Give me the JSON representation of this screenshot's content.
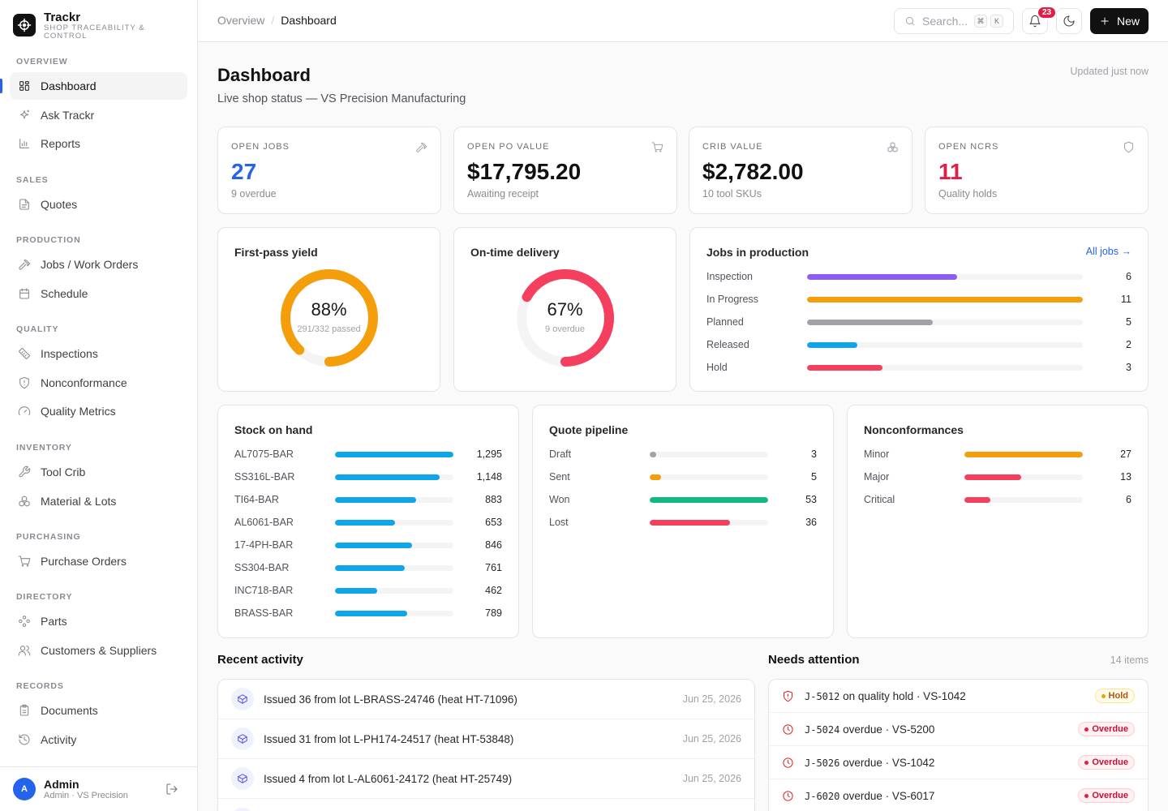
{
  "brand": {
    "name": "Trackr",
    "tagline": "SHOP TRACEABILITY & CONTROL"
  },
  "sidebar": {
    "sections": [
      {
        "title": "OVERVIEW",
        "items": [
          {
            "label": "Dashboard",
            "icon": "grid-icon",
            "active": true
          },
          {
            "label": "Ask Trackr",
            "icon": "sparkle-icon"
          },
          {
            "label": "Reports",
            "icon": "bar-chart-icon"
          }
        ]
      },
      {
        "title": "SALES",
        "items": [
          {
            "label": "Quotes",
            "icon": "file-icon"
          }
        ]
      },
      {
        "title": "PRODUCTION",
        "items": [
          {
            "label": "Jobs / Work Orders",
            "icon": "hammer-icon"
          },
          {
            "label": "Schedule",
            "icon": "calendar-icon"
          }
        ]
      },
      {
        "title": "QUALITY",
        "items": [
          {
            "label": "Inspections",
            "icon": "ruler-icon"
          },
          {
            "label": "Nonconformance",
            "icon": "shield-alert-icon"
          },
          {
            "label": "Quality Metrics",
            "icon": "gauge-icon"
          }
        ]
      },
      {
        "title": "INVENTORY",
        "items": [
          {
            "label": "Tool Crib",
            "icon": "wrench-icon"
          },
          {
            "label": "Material & Lots",
            "icon": "boxes-icon"
          }
        ]
      },
      {
        "title": "PURCHASING",
        "items": [
          {
            "label": "Purchase Orders",
            "icon": "cart-icon"
          }
        ]
      },
      {
        "title": "DIRECTORY",
        "items": [
          {
            "label": "Parts",
            "icon": "parts-icon"
          },
          {
            "label": "Customers & Suppliers",
            "icon": "users-icon"
          }
        ]
      },
      {
        "title": "RECORDS",
        "items": [
          {
            "label": "Documents",
            "icon": "document-icon"
          },
          {
            "label": "Activity",
            "icon": "history-icon"
          }
        ]
      }
    ],
    "user": {
      "initial": "A",
      "name": "Admin",
      "role": "Admin · VS Precision"
    }
  },
  "header": {
    "breadcrumb": [
      "Overview",
      "Dashboard"
    ],
    "search_placeholder": "Search...",
    "kbd": [
      "⌘",
      "K"
    ],
    "notifications": "23",
    "new_label": "New"
  },
  "page": {
    "title": "Dashboard",
    "subtitle": "Live shop status — VS Precision Manufacturing",
    "updated": "Updated just now"
  },
  "kpis": [
    {
      "label": "OPEN JOBS",
      "value": "27",
      "sub": "9 overdue",
      "color": "#2563eb",
      "icon": "hammer-icon"
    },
    {
      "label": "OPEN PO VALUE",
      "value": "$17,795.20",
      "sub": "Awaiting receipt",
      "color": "#111111",
      "icon": "cart-icon"
    },
    {
      "label": "CRIB VALUE",
      "value": "$2,782.00",
      "sub": "10 tool SKUs",
      "color": "#111111",
      "icon": "boxes-icon"
    },
    {
      "label": "OPEN NCRS",
      "value": "11",
      "sub": "Quality holds",
      "color": "#e11d48",
      "icon": "shield-icon"
    }
  ],
  "donuts": [
    {
      "title": "First-pass yield",
      "pct": "88%",
      "sub": "291/332 passed",
      "value": 0.88,
      "color": "#f59e0b"
    },
    {
      "title": "On-time delivery",
      "pct": "67%",
      "sub": "9 overdue",
      "value": 0.67,
      "color": "#f43f5e"
    }
  ],
  "jobs": {
    "title": "Jobs in production",
    "link": "All jobs →",
    "max": 11,
    "rows": [
      {
        "label": "Inspection",
        "value": 6,
        "color": "#8b5cf6"
      },
      {
        "label": "In Progress",
        "value": 11,
        "color": "#f59e0b"
      },
      {
        "label": "Planned",
        "value": 5,
        "color": "#a1a1aa"
      },
      {
        "label": "Released",
        "value": 2,
        "color": "#0ea5e9"
      },
      {
        "label": "Hold",
        "value": 3,
        "color": "#f43f5e"
      }
    ]
  },
  "stock": {
    "title": "Stock on hand",
    "max": 1295,
    "rows": [
      {
        "label": "AL7075-BAR",
        "value": 1295,
        "display": "1,295"
      },
      {
        "label": "SS316L-BAR",
        "value": 1148,
        "display": "1,148"
      },
      {
        "label": "TI64-BAR",
        "value": 883,
        "display": "883"
      },
      {
        "label": "AL6061-BAR",
        "value": 653,
        "display": "653"
      },
      {
        "label": "17-4PH-BAR",
        "value": 846,
        "display": "846"
      },
      {
        "label": "SS304-BAR",
        "value": 761,
        "display": "761"
      },
      {
        "label": "INC718-BAR",
        "value": 462,
        "display": "462"
      },
      {
        "label": "BRASS-BAR",
        "value": 789,
        "display": "789"
      }
    ]
  },
  "quotes": {
    "title": "Quote pipeline",
    "max": 53,
    "rows": [
      {
        "label": "Draft",
        "value": 3,
        "color": "#a1a1aa"
      },
      {
        "label": "Sent",
        "value": 5,
        "color": "#f59e0b"
      },
      {
        "label": "Won",
        "value": 53,
        "color": "#10b981"
      },
      {
        "label": "Lost",
        "value": 36,
        "color": "#f43f5e"
      }
    ]
  },
  "ncr": {
    "title": "Nonconformances",
    "max": 27,
    "rows": [
      {
        "label": "Minor",
        "value": 27,
        "color": "#f59e0b"
      },
      {
        "label": "Major",
        "value": 13,
        "color": "#f43f5e"
      },
      {
        "label": "Critical",
        "value": 6,
        "color": "#f43f5e"
      }
    ]
  },
  "activity": {
    "title": "Recent activity",
    "items": [
      {
        "text": "Issued 36 from lot L-BRASS-24746 (heat HT-71096)",
        "date": "Jun 25, 2026"
      },
      {
        "text": "Issued 31 from lot L-PH174-24517 (heat HT-53848)",
        "date": "Jun 25, 2026"
      },
      {
        "text": "Issued 4 from lot L-AL6061-24172 (heat HT-25749)",
        "date": "Jun 25, 2026"
      }
    ]
  },
  "attention": {
    "title": "Needs attention",
    "count": "14 items",
    "items": [
      {
        "job": "J-5012",
        "text": "on quality hold · VS-1042",
        "badge": "Hold",
        "kind": "hold",
        "icon": "shield-alert-icon"
      },
      {
        "job": "J-5024",
        "text": "overdue · VS-5200",
        "badge": "Overdue",
        "kind": "overdue",
        "icon": "clock-icon"
      },
      {
        "job": "J-5026",
        "text": "overdue · VS-1042",
        "badge": "Overdue",
        "kind": "overdue",
        "icon": "clock-icon"
      },
      {
        "job": "J-6020",
        "text": "overdue · VS-6017",
        "badge": "Overdue",
        "kind": "overdue",
        "icon": "clock-icon"
      }
    ]
  }
}
